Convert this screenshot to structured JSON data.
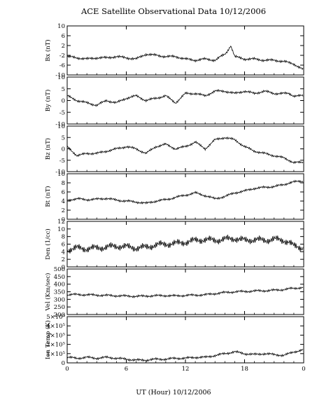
{
  "figure": {
    "title": "ACE Satellite Observational Data   10/12/2006",
    "xlabel": "UT (Hour)   10/12/2006",
    "x_tick_labels": [
      "0",
      "6",
      "12",
      "18",
      "0"
    ]
  },
  "chart_data": [
    {
      "type": "line",
      "ylabel": "Bx (nT)",
      "ylim": [
        -10,
        10
      ],
      "ytick_labels": [
        "-10",
        "-6",
        "-2",
        "2",
        "6",
        "10"
      ],
      "xlim": [
        0,
        24
      ],
      "x": [
        0,
        1,
        2,
        3,
        4,
        5,
        6,
        7,
        8,
        9,
        10,
        11,
        12,
        13,
        14,
        15,
        16,
        16.6,
        17,
        18,
        19,
        20,
        21,
        22,
        22.5,
        23,
        24
      ],
      "values": [
        -2.5,
        -3,
        -3.5,
        -3,
        -3,
        -2.5,
        -3,
        -3.5,
        -1.5,
        -2,
        -2.5,
        -2.5,
        -3.5,
        -4,
        -3.5,
        -4,
        -1.5,
        1.5,
        -2.5,
        -3.5,
        -3.5,
        -4,
        -4,
        -4.5,
        -5,
        -5.5,
        -8
      ]
    },
    {
      "type": "line",
      "ylabel": "By (nT)",
      "ylim": [
        -10,
        10
      ],
      "ytick_labels": [
        "-10",
        "-5",
        "0",
        "5",
        "10"
      ],
      "xlim": [
        0,
        24
      ],
      "x": [
        0,
        1,
        2,
        3,
        4,
        5,
        6,
        7,
        8,
        9,
        10,
        11,
        12,
        13,
        14,
        15,
        16,
        17,
        18,
        19,
        20,
        21,
        22,
        22.5,
        23,
        24
      ],
      "values": [
        2,
        0,
        -1,
        -2,
        0,
        -1,
        1,
        2,
        0,
        1,
        2,
        -1,
        3,
        3,
        2,
        4,
        4,
        3,
        4,
        3,
        4,
        3,
        3,
        3,
        2,
        2
      ]
    },
    {
      "type": "line",
      "ylabel": "Bz (nT)",
      "ylim": [
        -10,
        10
      ],
      "ytick_labels": [
        "-10",
        "-5",
        "0",
        "5",
        "10"
      ],
      "xlim": [
        0,
        24
      ],
      "x": [
        0,
        1,
        2,
        3,
        4,
        5,
        6,
        7,
        8,
        9,
        10,
        11,
        12,
        13,
        14,
        15,
        16,
        17,
        18,
        19,
        20,
        21,
        22,
        22.5,
        23,
        24
      ],
      "values": [
        1,
        -3,
        -2,
        -2,
        -1,
        0,
        1,
        0,
        -2,
        1,
        2,
        0,
        1,
        3,
        0,
        4,
        5,
        4,
        1,
        -1,
        -2,
        -3,
        -4,
        -5,
        -6,
        -6
      ]
    },
    {
      "type": "line",
      "ylabel": "Bt (nT)",
      "ylim": [
        0,
        10
      ],
      "ytick_labels": [
        "0",
        "2",
        "4",
        "6",
        "8",
        "10"
      ],
      "xlim": [
        0,
        24
      ],
      "x": [
        0,
        1,
        2,
        3,
        4,
        5,
        6,
        7,
        8,
        9,
        10,
        11,
        12,
        13,
        14,
        15,
        16,
        17,
        18,
        19,
        20,
        21,
        22,
        22.5,
        23,
        24
      ],
      "values": [
        4.2,
        4.5,
        4.3,
        4.4,
        4.6,
        4.2,
        4.0,
        3.8,
        3.5,
        4.0,
        4.3,
        4.8,
        5.3,
        5.8,
        5.2,
        4.5,
        5.0,
        5.8,
        6.2,
        6.8,
        7.0,
        7.2,
        7.6,
        8.0,
        8.2,
        8.4
      ]
    },
    {
      "type": "line",
      "ylabel": "Den (1/cc)",
      "ylim": [
        0,
        12
      ],
      "ytick_labels": [
        "0",
        "2",
        "4",
        "6",
        "8",
        "10",
        "12"
      ],
      "xlim": [
        0,
        24
      ],
      "x": [
        0,
        1,
        2,
        3,
        4,
        5,
        6,
        7,
        8,
        9,
        10,
        11,
        12,
        13,
        14,
        15,
        16,
        17,
        18,
        19,
        20,
        21,
        22,
        22.5,
        23,
        24
      ],
      "values": [
        4.5,
        5,
        4.8,
        5,
        5.2,
        5.5,
        5.3,
        5,
        5.2,
        5.8,
        6,
        6.2,
        6.5,
        7,
        7.2,
        7,
        7.3,
        7.5,
        7,
        7.2,
        7,
        7.3,
        7,
        6.5,
        5.5,
        5
      ]
    },
    {
      "type": "line",
      "ylabel": "Vel (Km/sec)",
      "ylim": [
        200,
        500
      ],
      "ytick_labels": [
        "200",
        "250",
        "300",
        "350",
        "400",
        "450",
        "500"
      ],
      "xlim": [
        0,
        24
      ],
      "x": [
        0,
        1,
        2,
        3,
        4,
        5,
        6,
        7,
        8,
        9,
        10,
        11,
        12,
        13,
        14,
        15,
        16,
        17,
        18,
        19,
        20,
        21,
        22,
        22.5,
        23,
        24
      ],
      "values": [
        330,
        332,
        330,
        328,
        326,
        324,
        322,
        320,
        322,
        324,
        325,
        323,
        326,
        328,
        330,
        338,
        345,
        350,
        352,
        355,
        357,
        360,
        365,
        370,
        372,
        380
      ]
    },
    {
      "type": "line",
      "ylabel": "Ion Temp (K)",
      "ylim": [
        0,
        5
      ],
      "ytick_labels": [
        "0",
        "1×10⁵",
        "2×10⁵",
        "3×10⁵",
        "4×10⁵",
        "5×10⁵"
      ],
      "xlim": [
        0,
        24
      ],
      "x": [
        0,
        1,
        2,
        3,
        4,
        5,
        6,
        7,
        8,
        9,
        10,
        11,
        12,
        13,
        14,
        15,
        16,
        17,
        18,
        19,
        20,
        21,
        22,
        22.5,
        23,
        24
      ],
      "values": [
        0.6,
        0.5,
        0.6,
        0.5,
        0.6,
        0.5,
        0.4,
        0.3,
        0.3,
        0.4,
        0.4,
        0.5,
        0.5,
        0.6,
        0.6,
        0.8,
        1.0,
        1.2,
        1.0,
        0.9,
        1.0,
        0.9,
        0.8,
        1.0,
        1.2,
        1.4
      ]
    }
  ]
}
